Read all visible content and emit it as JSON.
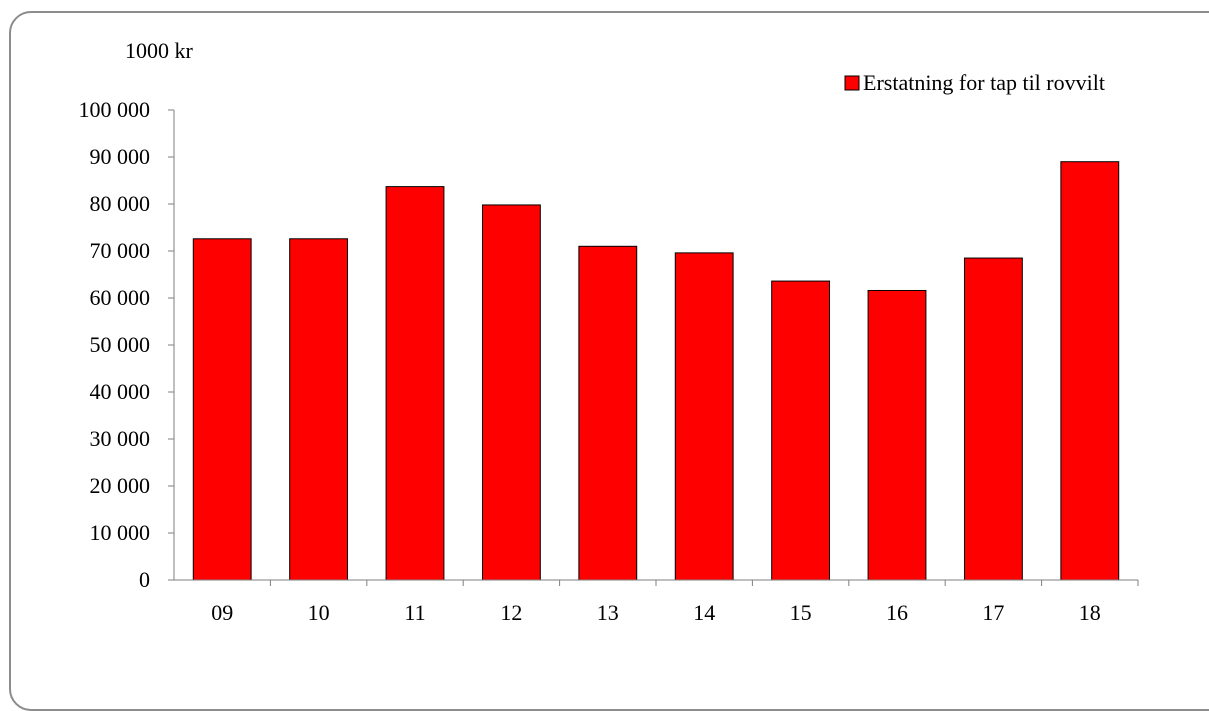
{
  "chart_data": {
    "type": "bar",
    "title": "",
    "ylabel": "1000 kr",
    "xlabel": "",
    "categories": [
      "09",
      "10",
      "11",
      "12",
      "13",
      "14",
      "15",
      "16",
      "17",
      "18"
    ],
    "series": [
      {
        "name": "Erstatning for tap til rovvilt",
        "values": [
          72600,
          72600,
          83700,
          79800,
          71000,
          69600,
          63600,
          61600,
          68500,
          89000
        ]
      }
    ],
    "ylim": [
      0,
      100000
    ],
    "yticks": [
      0,
      10000,
      20000,
      30000,
      40000,
      50000,
      60000,
      70000,
      80000,
      90000,
      100000
    ],
    "ytick_labels": [
      "0",
      "10 000",
      "20 000",
      "30 000",
      "40 000",
      "50 000",
      "60 000",
      "70 000",
      "80 000",
      "90 000",
      "100 000"
    ],
    "grid": false,
    "legend_position": "top-right",
    "colors": {
      "bar_fill": "#ff0000",
      "bar_stroke": "#000000",
      "axis": "#7f7f7f",
      "frame": "#8c8c8c"
    }
  }
}
